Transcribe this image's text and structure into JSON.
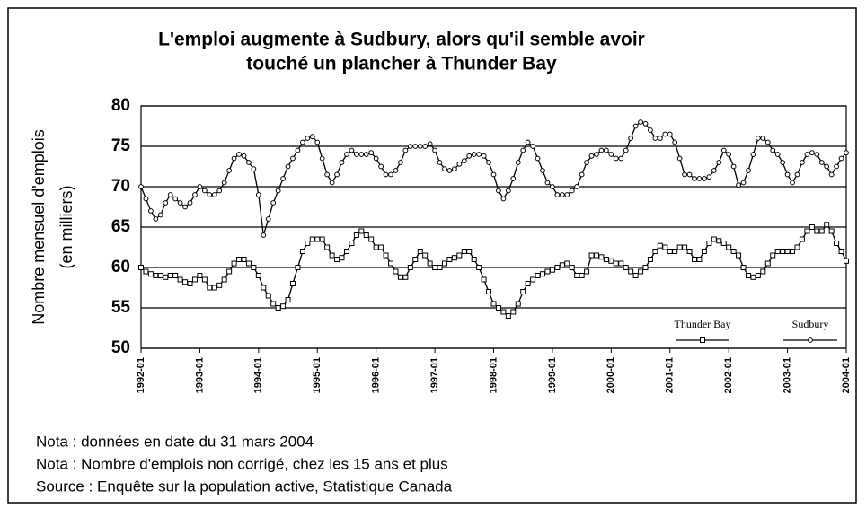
{
  "chart_data": {
    "type": "line",
    "title": "L'emploi augmente à Sudbury, alors qu'il semble avoir",
    "title_line2": "touché un plancher à Thunder Bay",
    "y_label": "Nombre mensuel d'emplois",
    "y_label_line2": "(en milliers)",
    "notes": [
      "Nota : données en date du 31 mars 2004",
      "Nota : Nombre d'emplois non corrigé, chez les 15 ans et plus",
      "Source : Enquête sur la population active, Statistique Canada"
    ],
    "categories": [
      "1992-01",
      null,
      null,
      null,
      null,
      null,
      null,
      null,
      null,
      null,
      null,
      null,
      "1993-01",
      null,
      null,
      null,
      null,
      null,
      null,
      null,
      null,
      null,
      null,
      null,
      "1994-01",
      null,
      null,
      null,
      null,
      null,
      null,
      null,
      null,
      null,
      null,
      null,
      "1995-01",
      null,
      null,
      null,
      null,
      null,
      null,
      null,
      null,
      null,
      null,
      null,
      "1996-01",
      null,
      null,
      null,
      null,
      null,
      null,
      null,
      null,
      null,
      null,
      null,
      "1997-01",
      null,
      null,
      null,
      null,
      null,
      null,
      null,
      null,
      null,
      null,
      null,
      "1998-01",
      null,
      null,
      null,
      null,
      null,
      null,
      null,
      null,
      null,
      null,
      null,
      "1999-01",
      null,
      null,
      null,
      null,
      null,
      null,
      null,
      null,
      null,
      null,
      null,
      "2000-01",
      null,
      null,
      null,
      null,
      null,
      null,
      null,
      null,
      null,
      null,
      null,
      "2001-01",
      null,
      null,
      null,
      null,
      null,
      null,
      null,
      null,
      null,
      null,
      null,
      "2002-01",
      null,
      null,
      null,
      null,
      null,
      null,
      null,
      null,
      null,
      null,
      null,
      "2003-01",
      null,
      null,
      null,
      null,
      null,
      null,
      null,
      null,
      null,
      null,
      null,
      "2004-01"
    ],
    "series": [
      {
        "name": "Thunder Bay",
        "color": "#000000",
        "marker": "square",
        "values": [
          60,
          59.5,
          59.2,
          59,
          59,
          58.8,
          59,
          59,
          58.5,
          58.2,
          58,
          58.5,
          59,
          58.5,
          57.5,
          57.5,
          57.8,
          58.5,
          59.5,
          60.5,
          61,
          61,
          60.5,
          60,
          59,
          57.5,
          56.5,
          55.5,
          55,
          55.2,
          56,
          58,
          60,
          62,
          63,
          63.5,
          63.5,
          63.5,
          62.5,
          61.5,
          61,
          61.2,
          62,
          63,
          64,
          64.5,
          64,
          63.5,
          62.5,
          62.5,
          61.5,
          60.5,
          59.5,
          58.8,
          58.8,
          60,
          61,
          62,
          61.5,
          60.5,
          60,
          60,
          60.5,
          61,
          61.2,
          61.5,
          62,
          62,
          61,
          60,
          58.5,
          57,
          55.5,
          55,
          54.5,
          54,
          54.5,
          55.5,
          57,
          58,
          58.5,
          59,
          59.2,
          59.5,
          59.7,
          60,
          60.3,
          60.5,
          60,
          59,
          59,
          59.5,
          61.5,
          61.5,
          61.3,
          61,
          60.8,
          60.5,
          60.5,
          60,
          59.5,
          59,
          59.5,
          60,
          61,
          62,
          62.7,
          62.5,
          62,
          62,
          62.5,
          62.5,
          62,
          61,
          61,
          62,
          63,
          63.5,
          63.3,
          63,
          62.5,
          62,
          61.5,
          60,
          59,
          58.8,
          59,
          59.5,
          60.5,
          61.5,
          62,
          62,
          62,
          62,
          62.5,
          63.5,
          64.5,
          65,
          64.5,
          64.5,
          65.3,
          64.5,
          63,
          62,
          60.8
        ]
      },
      {
        "name": "Sudbury",
        "color": "#000000",
        "marker": "circle",
        "values": [
          70,
          68.5,
          67,
          66,
          66.5,
          68,
          69,
          68.5,
          68,
          67.5,
          68,
          69,
          70,
          69.5,
          69,
          69,
          69.5,
          70.5,
          72,
          73.5,
          74,
          73.8,
          73,
          72.2,
          69,
          64,
          66,
          68,
          69.5,
          71,
          72.5,
          73.5,
          74.5,
          75.5,
          76,
          76.2,
          75.5,
          73.5,
          71.5,
          70.5,
          71.5,
          73,
          74,
          74.5,
          74,
          74,
          74,
          74.2,
          73.5,
          72.5,
          71.5,
          71.5,
          72,
          73,
          74.5,
          75,
          75,
          75,
          75,
          75.3,
          74.5,
          73,
          72.2,
          72,
          72.2,
          72.8,
          73.2,
          73.8,
          74,
          74,
          73.8,
          73,
          71.5,
          69.5,
          68.5,
          69.5,
          71,
          73,
          74.5,
          75.5,
          75,
          73.5,
          72,
          70.5,
          70,
          69,
          69,
          69,
          69.5,
          70,
          71.5,
          73,
          73.8,
          74,
          74.5,
          74.5,
          74,
          73.5,
          73.5,
          74.5,
          76,
          77.5,
          78,
          77.8,
          77,
          76,
          76,
          76.5,
          76.5,
          75.5,
          73.5,
          71.5,
          71.5,
          71,
          71,
          71,
          71.2,
          72,
          73,
          74.5,
          74,
          72.5,
          70.2,
          70.5,
          72,
          74,
          76,
          76,
          75.5,
          74.5,
          74,
          73,
          71.5,
          70.5,
          71.5,
          73,
          74,
          74.2,
          74,
          73,
          72.5,
          71.5,
          72.5,
          73.5,
          74.2
        ]
      }
    ],
    "ylim": [
      50,
      80
    ],
    "yticks": [
      50,
      55,
      60,
      65,
      70,
      75,
      80
    ],
    "grid": true,
    "legend": "lower right"
  }
}
